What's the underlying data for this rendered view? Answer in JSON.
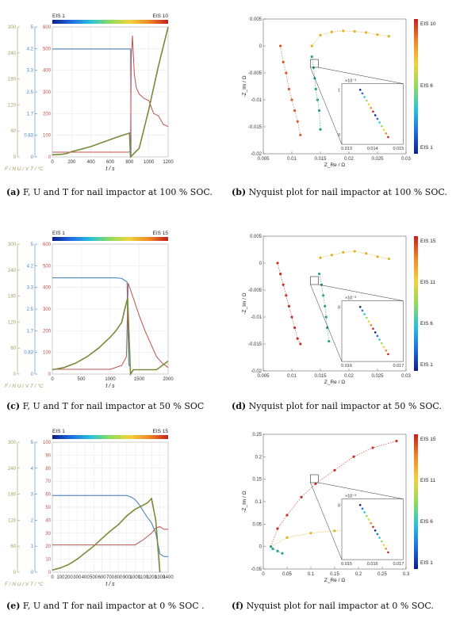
{
  "captions": [
    {
      "label": "(a)",
      "text": "F, U and T for nail impactor at 100 % SOC."
    },
    {
      "label": "(b)",
      "text": "Nyquist plot for nail impactor at 100 % SOC."
    },
    {
      "label": "(c)",
      "text": "F, U and T for nail impactor at 50 % SOC"
    },
    {
      "label": "(d)",
      "text": "Nyquist plot for nail impactor at 50 % SOC."
    },
    {
      "label": "(e)",
      "text": "F, U and T for nail impactor at 0 % SOC ."
    },
    {
      "label": "(f)",
      "text": "Nyquist plot for nail impactor at 0 % SOC."
    }
  ],
  "chart_data": [
    {
      "id": "a",
      "type": "line",
      "xlabel": "t / s",
      "xlim": [
        0,
        1200
      ],
      "xticks": [
        0,
        200,
        400,
        600,
        800,
        1000,
        1200
      ],
      "ylabel": "F / N  U / V  T / °C",
      "axes": {
        "F": {
          "lim": [
            0,
            300
          ],
          "ticks": [
            "0",
            "60",
            "120",
            "180",
            "240",
            "300"
          ],
          "color": "#a89b5a"
        },
        "U": {
          "lim": [
            0,
            5
          ],
          "ticks": [
            "0",
            "0.83",
            "1.7",
            "2.5",
            "3.3",
            "4.2",
            "5"
          ],
          "color": "#4a86c8"
        },
        "T": {
          "lim": [
            0,
            600
          ],
          "ticks": [
            "0",
            "100",
            "200",
            "300",
            "400",
            "500",
            "600"
          ],
          "color": "#c0504d"
        }
      },
      "colorbar": {
        "start": "EIS 1",
        "end": "EIS 10"
      },
      "series": [
        {
          "name": "U",
          "axis": "U",
          "color": "#3a78b8",
          "x": [
            0,
            800,
            812,
            815,
            830
          ],
          "y": [
            4.15,
            4.15,
            4.15,
            0.03,
            0.03
          ]
        },
        {
          "name": "T",
          "axis": "T",
          "color": "#c0504d",
          "x": [
            0,
            790,
            810,
            818,
            830,
            850,
            870,
            900,
            950,
            1000,
            1050,
            1100,
            1150,
            1200
          ],
          "y": [
            22,
            22,
            25,
            450,
            560,
            380,
            320,
            290,
            270,
            260,
            200,
            190,
            150,
            140
          ]
        },
        {
          "name": "F",
          "axis": "F",
          "color": "#7a8a3a",
          "x": [
            0,
            100,
            150,
            200,
            300,
            400,
            500,
            600,
            700,
            800,
            810,
            900,
            1000,
            1100,
            1200
          ],
          "y": [
            5,
            6,
            8,
            12,
            18,
            24,
            32,
            40,
            48,
            55,
            0,
            20,
            110,
            210,
            300
          ]
        }
      ],
      "grid": true
    },
    {
      "id": "b",
      "type": "scatter",
      "xlabel": "Z_Re / Ω",
      "ylabel": "-Z_Im / Ω",
      "xlim": [
        0.005,
        0.03
      ],
      "ylim": [
        -0.02,
        0.005
      ],
      "xticks": [
        "0.005",
        "0.01",
        "0.015",
        "0.02",
        "0.025",
        "0.03"
      ],
      "yticks": [
        "0.005",
        "0",
        "-0.005",
        "-0.01",
        "-0.015",
        "-0.02"
      ],
      "colorbar": {
        "labels": [
          "EIS 10",
          "EIS 6",
          "EIS 1"
        ]
      },
      "inset": {
        "xticks": [
          "0.013",
          "0.014",
          "0.015"
        ],
        "ylabel_exp": "×10⁻³",
        "yticks": [
          "1",
          "0"
        ]
      },
      "series": [
        {
          "name": "",
          "color": "#d85a2a",
          "x": [
            0.008,
            0.0085,
            0.009,
            0.0095,
            0.01,
            0.0105,
            0.011,
            0.0115
          ],
          "y": [
            0,
            -0.003,
            -0.005,
            -0.008,
            -0.01,
            -0.012,
            -0.014,
            -0.0165
          ]
        },
        {
          "name": "",
          "color": "#e3b020",
          "x": [
            0.0135,
            0.015,
            0.017,
            0.019,
            0.021,
            0.023,
            0.025,
            0.027
          ],
          "y": [
            0,
            0.002,
            0.0026,
            0.0028,
            0.0027,
            0.0025,
            0.0021,
            0.0018
          ]
        },
        {
          "name": "",
          "color": "#2ba08a",
          "x": [
            0.0135,
            0.0138,
            0.014,
            0.0142,
            0.0145,
            0.0148,
            0.015
          ],
          "y": [
            -0.002,
            -0.004,
            -0.006,
            -0.008,
            -0.01,
            -0.012,
            -0.0155
          ]
        }
      ]
    },
    {
      "id": "c",
      "type": "line",
      "xlabel": "t / s",
      "xlim": [
        0,
        2000
      ],
      "xticks": [
        0,
        500,
        1000,
        1500,
        2000
      ],
      "ylabel": "F / N  U / V  T / °C",
      "axes": {
        "F": {
          "lim": [
            0,
            300
          ],
          "ticks": [
            "0",
            "60",
            "120",
            "180",
            "240",
            "300"
          ],
          "color": "#a89b5a"
        },
        "U": {
          "lim": [
            0,
            5
          ],
          "ticks": [
            "0",
            "0.83",
            "1.7",
            "2.5",
            "3.3",
            "4.2",
            "5"
          ],
          "color": "#4a86c8"
        },
        "T": {
          "lim": [
            0,
            600
          ],
          "ticks": [
            "0",
            "100",
            "200",
            "300",
            "400",
            "500",
            "600"
          ],
          "color": "#c0504d"
        }
      },
      "colorbar": {
        "start": "EIS 1",
        "end": "EIS 15"
      },
      "series": [
        {
          "name": "U",
          "axis": "U",
          "color": "#3a78b8",
          "x": [
            0,
            1100,
            1200,
            1250,
            1290,
            1300,
            1320,
            1340
          ],
          "y": [
            3.7,
            3.7,
            3.68,
            3.6,
            3.55,
            2.2,
            0.35,
            0.3
          ]
        },
        {
          "name": "T",
          "axis": "T",
          "color": "#c0504d",
          "x": [
            0,
            1000,
            1200,
            1280,
            1310,
            1400,
            1500,
            1600,
            1700,
            1800,
            1900,
            2000
          ],
          "y": [
            22,
            22,
            40,
            80,
            420,
            350,
            270,
            200,
            140,
            80,
            50,
            30
          ]
        },
        {
          "name": "F",
          "axis": "F",
          "color": "#7a8a3a",
          "x": [
            0,
            200,
            400,
            600,
            800,
            1000,
            1100,
            1200,
            1250,
            1300,
            1350,
            1400,
            1600,
            1800,
            2000
          ],
          "y": [
            10,
            15,
            25,
            40,
            60,
            85,
            100,
            120,
            150,
            175,
            0,
            10,
            10,
            10,
            30
          ]
        }
      ],
      "grid": true
    },
    {
      "id": "d",
      "type": "scatter",
      "xlabel": "Z_Re / Ω",
      "ylabel": "-Z_Im / Ω",
      "xlim": [
        0.005,
        0.03
      ],
      "ylim": [
        -0.02,
        0.005
      ],
      "xticks": [
        "0.005",
        "0.01",
        "0.015",
        "0.02",
        "0.025",
        "0.03"
      ],
      "yticks": [
        "0.005",
        "0",
        "-0.005",
        "-0.01",
        "-0.015",
        "-0.02"
      ],
      "colorbar": {
        "labels": [
          "EIS 15",
          "EIS 11",
          "EIS 6",
          "EIS 1"
        ]
      },
      "inset": {
        "xticks": [
          "0.016",
          "0.017"
        ],
        "ylabel_exp": "×10⁻³",
        "yticks": [
          "0"
        ]
      },
      "series": [
        {
          "name": "",
          "color": "#c8302a",
          "x": [
            0.0075,
            0.008,
            0.0085,
            0.009,
            0.0095,
            0.01,
            0.0105,
            0.011,
            0.0115
          ],
          "y": [
            0,
            -0.002,
            -0.004,
            -0.006,
            -0.008,
            -0.01,
            -0.012,
            -0.014,
            -0.015
          ]
        },
        {
          "name": "",
          "color": "#e3b020",
          "x": [
            0.015,
            0.017,
            0.019,
            0.021,
            0.023,
            0.025,
            0.027
          ],
          "y": [
            0.001,
            0.0015,
            0.002,
            0.0022,
            0.0018,
            0.0012,
            0.0008
          ]
        },
        {
          "name": "",
          "color": "#2ba08a",
          "x": [
            0.0148,
            0.0152,
            0.0155,
            0.0158,
            0.016,
            0.0162,
            0.0165
          ],
          "y": [
            -0.002,
            -0.004,
            -0.006,
            -0.008,
            -0.01,
            -0.012,
            -0.0145
          ]
        }
      ]
    },
    {
      "id": "e",
      "type": "line",
      "xlabel": "t / s",
      "xlim": [
        0,
        1400
      ],
      "xticks": [
        0,
        100,
        200,
        300,
        400,
        500,
        600,
        700,
        800,
        900,
        1000,
        1100,
        1200,
        1300,
        1400
      ],
      "ylabel": "F / N  U / V  T / °C",
      "axes": {
        "F": {
          "lim": [
            0,
            300
          ],
          "ticks": [
            "0",
            "60",
            "120",
            "180",
            "240",
            "300"
          ],
          "color": "#a89b5a"
        },
        "U": {
          "lim": [
            0,
            5
          ],
          "ticks": [
            "0",
            "1",
            "2",
            "3",
            "4",
            "5"
          ],
          "color": "#4a86c8"
        },
        "T": {
          "lim": [
            0,
            100
          ],
          "ticks": [
            "0",
            "10",
            "20",
            "30",
            "40",
            "50",
            "60",
            "70",
            "80",
            "90",
            "100"
          ],
          "color": "#c0504d"
        }
      },
      "colorbar": {
        "start": "EIS 1",
        "end": "EIS 15"
      },
      "series": [
        {
          "name": "U",
          "axis": "U",
          "color": "#3a78b8",
          "x": [
            0,
            900,
            950,
            1000,
            1050,
            1100,
            1150,
            1200,
            1250,
            1300,
            1350,
            1400
          ],
          "y": [
            2.95,
            2.95,
            2.9,
            2.8,
            2.6,
            2.35,
            2.1,
            1.9,
            1.5,
            0.7,
            0.6,
            0.6
          ]
        },
        {
          "name": "T",
          "axis": "T",
          "color": "#c0504d",
          "x": [
            0,
            1000,
            1100,
            1200,
            1250,
            1300,
            1350,
            1400
          ],
          "y": [
            21,
            21,
            25,
            30,
            34,
            35,
            33,
            33
          ]
        },
        {
          "name": "F",
          "axis": "F",
          "color": "#7a8a3a",
          "x": [
            0,
            100,
            200,
            300,
            400,
            500,
            600,
            700,
            800,
            900,
            1000,
            1100,
            1150,
            1200,
            1250,
            1300
          ],
          "y": [
            5,
            10,
            18,
            30,
            45,
            60,
            78,
            95,
            110,
            130,
            145,
            155,
            160,
            170,
            120,
            0
          ]
        }
      ],
      "grid": true
    },
    {
      "id": "f",
      "type": "scatter",
      "xlabel": "Z_Re / Ω",
      "ylabel": "-Z_Im / Ω",
      "xlim": [
        0,
        0.3
      ],
      "ylim": [
        -0.05,
        0.25
      ],
      "xticks": [
        "0",
        "0.05",
        "0.1",
        "0.15",
        "0.2",
        "0.25",
        "0.3"
      ],
      "yticks": [
        "0.25",
        "0.2",
        "0.15",
        "0.1",
        "0.05",
        "0",
        "-0.05"
      ],
      "colorbar": {
        "labels": [
          "EIS 15",
          "EIS 11",
          "EIS 6",
          "EIS 1"
        ]
      },
      "inset": {
        "xticks": [
          "0.015",
          "0.016",
          "0.017"
        ],
        "ylabel_exp": "×10⁻³",
        "yticks": [
          "0"
        ]
      },
      "series": [
        {
          "name": "",
          "color": "#c8302a",
          "x": [
            0.016,
            0.03,
            0.05,
            0.08,
            0.11,
            0.15,
            0.19,
            0.23,
            0.28
          ],
          "y": [
            0,
            0.04,
            0.07,
            0.11,
            0.14,
            0.17,
            0.2,
            0.22,
            0.235
          ]
        },
        {
          "name": "",
          "color": "#e3b020",
          "x": [
            0.016,
            0.05,
            0.1,
            0.15,
            0.2,
            0.25
          ],
          "y": [
            0,
            0.02,
            0.03,
            0.035,
            0.04,
            0.045
          ]
        },
        {
          "name": "",
          "color": "#2ba08a",
          "x": [
            0.016,
            0.02,
            0.03,
            0.04
          ],
          "y": [
            0,
            -0.005,
            -0.01,
            -0.015
          ]
        }
      ]
    }
  ],
  "colors": {
    "jet": [
      "#0a1e8c",
      "#1e6ee6",
      "#27c3d9",
      "#8fdc5a",
      "#f2d23a",
      "#f08a24",
      "#c81e1e"
    ]
  }
}
